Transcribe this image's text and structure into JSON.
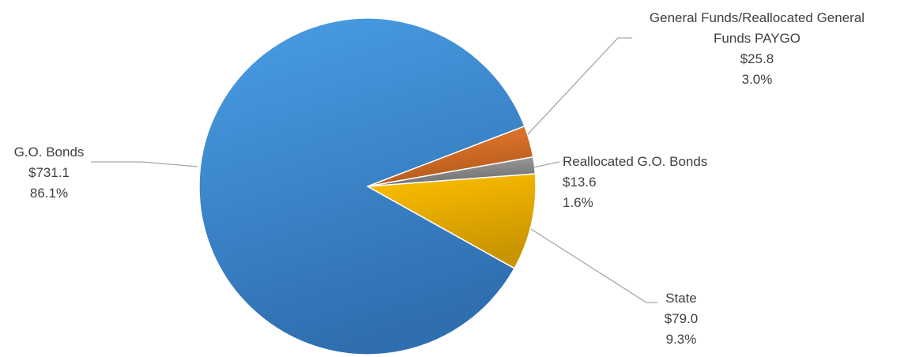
{
  "chart_data": {
    "type": "pie",
    "title": "",
    "legend": "none",
    "slices": [
      {
        "label_lines": [
          "General Funds/Reallocated General",
          "Funds PAYGO"
        ],
        "value": 25.8,
        "value_label": "$25.8",
        "percent": 3.0,
        "percent_label": "3.0%",
        "color": "#ed7d31",
        "color_dark": "#b55a1c"
      },
      {
        "label_lines": [
          "Reallocated G.O. Bonds"
        ],
        "value": 13.6,
        "value_label": "$13.6",
        "percent": 1.6,
        "percent_label": "1.6%",
        "color": "#a5a5a5",
        "color_dark": "#6f6f6f"
      },
      {
        "label_lines": [
          "State"
        ],
        "value": 79.0,
        "value_label": "$79.0",
        "percent": 9.3,
        "percent_label": "9.3%",
        "color": "#ffc000",
        "color_dark": "#c99400"
      },
      {
        "label_lines": [
          "G.O. Bonds"
        ],
        "value": 731.1,
        "value_label": "$731.1",
        "percent": 86.1,
        "percent_label": "86.1%",
        "color": "#4a9ee6",
        "color_dark": "#2f6fb0"
      }
    ]
  }
}
